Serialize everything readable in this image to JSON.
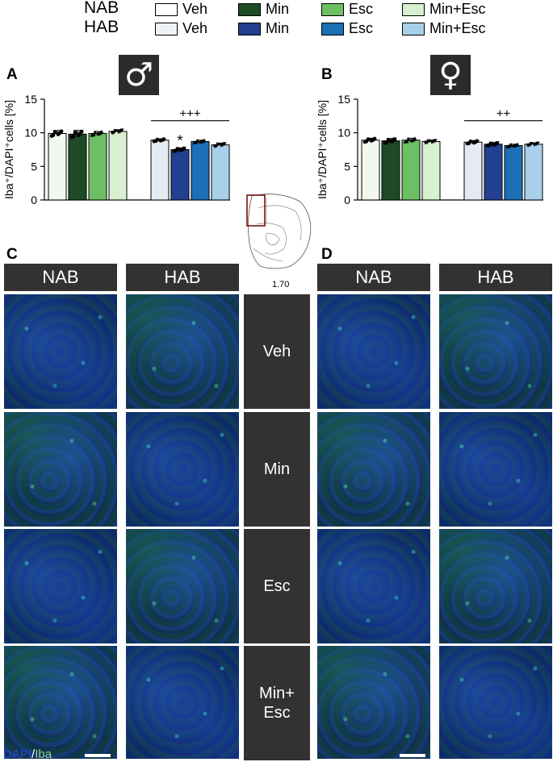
{
  "legend": {
    "groups": [
      {
        "label": "NAB",
        "items": [
          {
            "label": "Veh",
            "color": "#ffffff"
          },
          {
            "label": "Min",
            "color": "#1e4a26"
          },
          {
            "label": "Esc",
            "color": "#6cbf63"
          },
          {
            "label": "Min+Esc",
            "color": "#d7f0cf"
          }
        ]
      },
      {
        "label": "HAB",
        "items": [
          {
            "label": "Veh",
            "color": "#eef2f7"
          },
          {
            "label": "Min",
            "color": "#233f8f"
          },
          {
            "label": "Esc",
            "color": "#1d6fb6"
          },
          {
            "label": "Min+Esc",
            "color": "#a8d0ea"
          }
        ]
      }
    ]
  },
  "panels": {
    "A": {
      "letter": "A",
      "sex_symbol": "♂"
    },
    "B": {
      "letter": "B",
      "sex_symbol": "♀"
    },
    "C": {
      "letter": "C"
    },
    "D": {
      "letter": "D"
    }
  },
  "atlas": {
    "coordinate": "1.70"
  },
  "chart_data": [
    {
      "type": "bar",
      "panel": "A",
      "ylabel": "Iba⁺/DAPI⁺cells [%]",
      "ylim": [
        0,
        15
      ],
      "yticks": [
        "0",
        "5",
        "10",
        "15"
      ],
      "categories": [
        "Veh",
        "Min",
        "Esc",
        "Min+Esc",
        "Veh",
        "Min",
        "Esc",
        "Min+Esc"
      ],
      "groups": [
        "NAB",
        "NAB",
        "NAB",
        "NAB",
        "HAB",
        "HAB",
        "HAB",
        "HAB"
      ],
      "colors": [
        "#f1f8ee",
        "#1e4a26",
        "#6cbf63",
        "#d7f0cf",
        "#e4ebf3",
        "#233f8f",
        "#1d6fb6",
        "#a8d0ea"
      ],
      "values": [
        9.9,
        9.8,
        9.9,
        10.2,
        8.9,
        7.5,
        8.7,
        8.2
      ],
      "sem": [
        0.45,
        0.55,
        0.3,
        0.25,
        0.2,
        0.25,
        0.2,
        0.25
      ],
      "annotations": [
        {
          "text": "+++",
          "spans": [
            4,
            7
          ]
        },
        {
          "text": "*",
          "at": 5
        }
      ]
    },
    {
      "type": "bar",
      "panel": "B",
      "ylabel": "Iba⁺/DAPI⁺cells [%]",
      "ylim": [
        0,
        15
      ],
      "yticks": [
        "0",
        "5",
        "10",
        "15"
      ],
      "categories": [
        "Veh",
        "Min",
        "Esc",
        "Min+Esc",
        "Veh",
        "Min",
        "Esc",
        "Min+Esc"
      ],
      "groups": [
        "NAB",
        "NAB",
        "NAB",
        "NAB",
        "HAB",
        "HAB",
        "HAB",
        "HAB"
      ],
      "colors": [
        "#f1f8ee",
        "#1e4a26",
        "#6cbf63",
        "#d7f0cf",
        "#e4ebf3",
        "#233f8f",
        "#1d6fb6",
        "#a8d0ea"
      ],
      "values": [
        8.9,
        8.8,
        8.9,
        8.7,
        8.6,
        8.3,
        8.1,
        8.3
      ],
      "sem": [
        0.3,
        0.35,
        0.3,
        0.2,
        0.25,
        0.25,
        0.2,
        0.2
      ],
      "annotations": [
        {
          "text": "++",
          "spans": [
            4,
            7
          ]
        }
      ]
    }
  ],
  "images": {
    "col_headers_C": [
      "NAB",
      "HAB"
    ],
    "col_headers_D": [
      "NAB",
      "HAB"
    ],
    "rows": [
      "Veh",
      "Min",
      "Esc",
      "Min+\nEsc"
    ],
    "stain_label": {
      "dapi": "DAPI",
      "sep": "/",
      "iba": "Iba"
    },
    "stain_colors": {
      "dapi": "#2a4bd0",
      "iba": "#8fd18a"
    }
  }
}
